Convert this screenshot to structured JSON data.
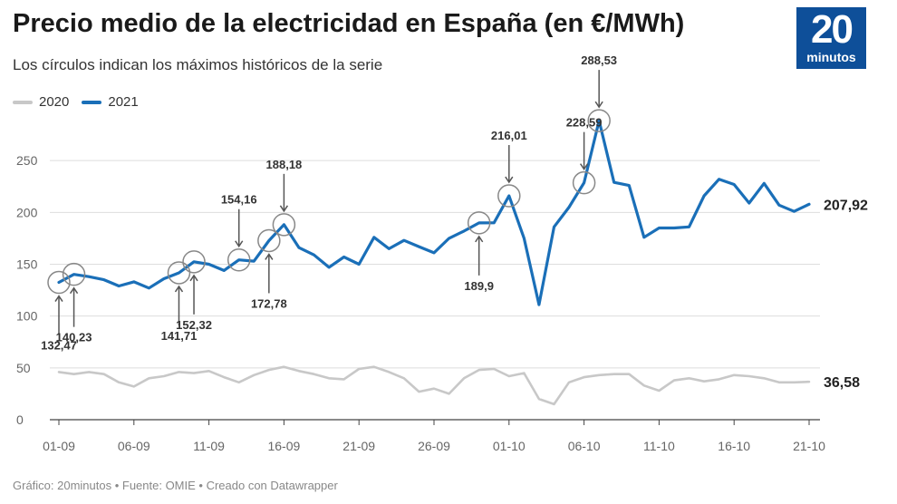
{
  "header": {
    "title": "Precio medio de la electricidad en España (en €/MWh)",
    "subtitle": "Los círculos indican los máximos históricos de la serie"
  },
  "logo": {
    "number": "20",
    "text": "minutos",
    "color": "#0e4f99"
  },
  "legend": [
    {
      "label": "2020",
      "color": "#c8c8c8"
    },
    {
      "label": "2021",
      "color": "#1a6fb8"
    }
  ],
  "footer": "Gráfico: 20minutos • Fuente: OMIE • Creado con Datawrapper",
  "chart_data": {
    "type": "line",
    "title": "Precio medio de la electricidad en España (en €/MWh)",
    "xlabel": "",
    "ylabel": "",
    "ylim": [
      0,
      300
    ],
    "yticks": [
      0,
      50,
      100,
      150,
      200,
      250
    ],
    "ytick_labels": [
      "0",
      "50",
      "100",
      "150",
      "200",
      "250"
    ],
    "x_count": 51,
    "xticks": [
      {
        "index": 0,
        "label": "01-09"
      },
      {
        "index": 5,
        "label": "06-09"
      },
      {
        "index": 10,
        "label": "11-09"
      },
      {
        "index": 15,
        "label": "16-09"
      },
      {
        "index": 20,
        "label": "21-09"
      },
      {
        "index": 25,
        "label": "26-09"
      },
      {
        "index": 30,
        "label": "01-10"
      },
      {
        "index": 35,
        "label": "06-10"
      },
      {
        "index": 40,
        "label": "11-10"
      },
      {
        "index": 45,
        "label": "16-10"
      },
      {
        "index": 50,
        "label": "21-10"
      }
    ],
    "grid": true,
    "legend_position": "top-left",
    "series": [
      {
        "name": "2020",
        "color": "#c8c8c8",
        "values": [
          46,
          44,
          46,
          44,
          36,
          32,
          40,
          42,
          46,
          45,
          47,
          41,
          36,
          43,
          48,
          51,
          47,
          44,
          40,
          39,
          49,
          51,
          46,
          40,
          27,
          30,
          25,
          40,
          48,
          49,
          42,
          45,
          20,
          15,
          36,
          41,
          43,
          44,
          44,
          33,
          28,
          38,
          40,
          37,
          39,
          43,
          42,
          40,
          36,
          36,
          36.58
        ],
        "end_label": "36,58"
      },
      {
        "name": "2021",
        "color": "#1a6fb8",
        "values": [
          132.47,
          140.23,
          138,
          135,
          129,
          133,
          127,
          136,
          141.71,
          152.32,
          150,
          144,
          154.16,
          153,
          172.78,
          188.18,
          166,
          159,
          147,
          157,
          150,
          176,
          165,
          173,
          167,
          161,
          175,
          182,
          189.9,
          190,
          216.01,
          175,
          111,
          186,
          205,
          228.59,
          288.53,
          229,
          226,
          176,
          185,
          185,
          186,
          216,
          232,
          227,
          209,
          228,
          207,
          201,
          207.92
        ],
        "end_label": "207,92"
      }
    ],
    "annotations": [
      {
        "index": 0,
        "value": 132.47,
        "label": "132,47",
        "dir": "below"
      },
      {
        "index": 1,
        "value": 140.23,
        "label": "140,23",
        "dir": "below"
      },
      {
        "index": 8,
        "value": 141.71,
        "label": "141,71",
        "dir": "below"
      },
      {
        "index": 9,
        "value": 152.32,
        "label": "152,32",
        "dir": "below"
      },
      {
        "index": 12,
        "value": 154.16,
        "label": "154,16",
        "dir": "above"
      },
      {
        "index": 14,
        "value": 172.78,
        "label": "172,78",
        "dir": "below"
      },
      {
        "index": 15,
        "value": 188.18,
        "label": "188,18",
        "dir": "above"
      },
      {
        "index": 28,
        "value": 189.9,
        "label": "189,9",
        "dir": "below"
      },
      {
        "index": 30,
        "value": 216.01,
        "label": "216,01",
        "dir": "above"
      },
      {
        "index": 35,
        "value": 228.59,
        "label": "228,59",
        "dir": "above"
      },
      {
        "index": 36,
        "value": 288.53,
        "label": "288,53",
        "dir": "above"
      }
    ]
  }
}
